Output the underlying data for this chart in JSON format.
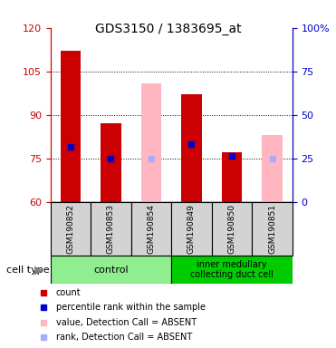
{
  "title": "GDS3150 / 1383695_at",
  "samples": [
    "GSM190852",
    "GSM190853",
    "GSM190854",
    "GSM190849",
    "GSM190850",
    "GSM190851"
  ],
  "groups": [
    {
      "name": "control",
      "color": "#90EE90",
      "samples": [
        "GSM190852",
        "GSM190853",
        "GSM190854"
      ]
    },
    {
      "name": "inner medullary\ncollecting duct cell",
      "color": "#00CC00",
      "samples": [
        "GSM190849",
        "GSM190850",
        "GSM190851"
      ]
    }
  ],
  "ylim_left": [
    60,
    120
  ],
  "ylim_right": [
    0,
    100
  ],
  "yticks_left": [
    60,
    75,
    90,
    105,
    120
  ],
  "yticks_right": [
    0,
    25,
    50,
    75,
    100
  ],
  "ytick_labels_right": [
    "0",
    "25",
    "50",
    "75",
    "100%"
  ],
  "count_values": [
    112,
    87,
    null,
    97,
    77,
    null
  ],
  "count_bottom": [
    60,
    60,
    null,
    60,
    60,
    null
  ],
  "absent_value_values": [
    null,
    null,
    101,
    null,
    null,
    83
  ],
  "absent_value_bottom": [
    null,
    null,
    60,
    null,
    null,
    60
  ],
  "percentile_values": [
    79,
    75,
    null,
    80,
    76,
    null
  ],
  "absent_rank_values": [
    null,
    null,
    75,
    null,
    null,
    75
  ],
  "bar_width": 0.5,
  "count_color": "#CC0000",
  "absent_value_color": "#FFB6C1",
  "percentile_color": "#0000CC",
  "absent_rank_color": "#AAAAFF",
  "grid_color": "#000000",
  "bg_color": "#FFFFFF",
  "plot_bg_color": "#FFFFFF",
  "left_axis_color": "#CC0000",
  "right_axis_color": "#0000CC",
  "xlabel_color": "#000000",
  "cell_type_label": "cell type"
}
